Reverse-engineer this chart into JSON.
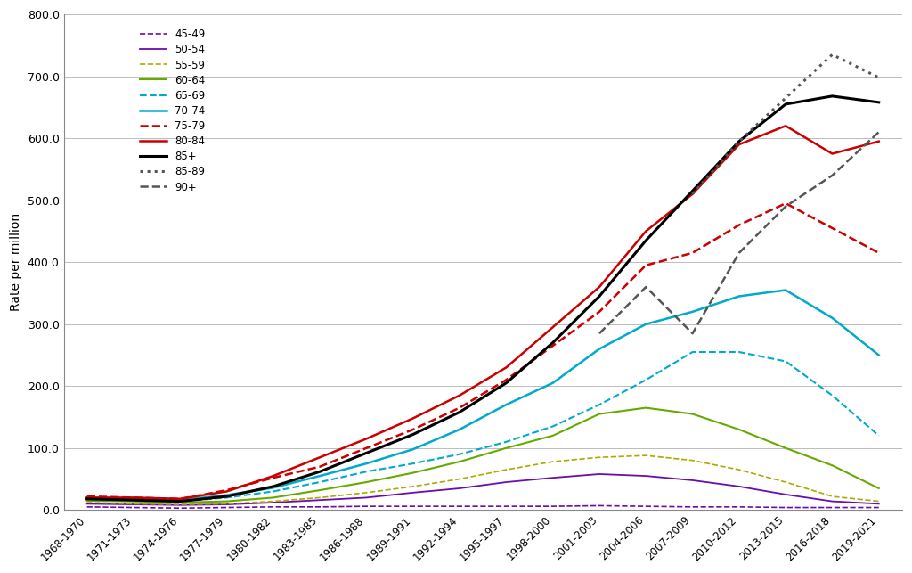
{
  "x_labels": [
    "1968-1970",
    "1971-1973",
    "1974-1976",
    "1977-1979",
    "1980-1982",
    "1983-1985",
    "1986-1988",
    "1989-1991",
    "1992-1994",
    "1995-1997",
    "1998-2000",
    "2001-2003",
    "2004-2006",
    "2007-2009",
    "2010-2012",
    "2013-2015",
    "2016-2018",
    "2019-2021"
  ],
  "series": {
    "45-49": {
      "color": "#6A0DAD",
      "linestyle": "dashed",
      "linewidth": 1.2,
      "values": [
        5,
        4,
        3,
        4,
        5,
        5,
        6,
        6,
        6,
        6,
        6,
        7,
        6,
        5,
        5,
        4,
        4,
        4
      ]
    },
    "50-54": {
      "color": "#6A0DAD",
      "linestyle": "solid",
      "linewidth": 1.3,
      "values": [
        10,
        9,
        8,
        9,
        12,
        16,
        20,
        28,
        35,
        45,
        52,
        58,
        55,
        48,
        38,
        25,
        14,
        10
      ]
    },
    "55-59": {
      "color": "#AAAA00",
      "linestyle": "dashed",
      "linewidth": 1.2,
      "values": [
        12,
        10,
        9,
        10,
        14,
        20,
        28,
        38,
        50,
        65,
        78,
        85,
        88,
        80,
        65,
        45,
        22,
        14
      ]
    },
    "60-64": {
      "color": "#66AA00",
      "linestyle": "solid",
      "linewidth": 1.5,
      "values": [
        15,
        14,
        12,
        14,
        20,
        32,
        45,
        60,
        78,
        100,
        120,
        155,
        165,
        155,
        130,
        100,
        72,
        35
      ]
    },
    "65-69": {
      "color": "#00AACC",
      "linestyle": "dashed",
      "linewidth": 1.5,
      "values": [
        18,
        16,
        14,
        20,
        30,
        45,
        62,
        75,
        90,
        110,
        135,
        170,
        210,
        255,
        255,
        240,
        185,
        120
      ]
    },
    "70-74": {
      "color": "#00AACC",
      "linestyle": "solid",
      "linewidth": 1.8,
      "values": [
        20,
        18,
        16,
        24,
        36,
        55,
        75,
        98,
        130,
        170,
        205,
        260,
        300,
        320,
        345,
        355,
        310,
        250
      ]
    },
    "75-79": {
      "color": "#CC0000",
      "linestyle": "dashed",
      "linewidth": 1.8,
      "values": [
        22,
        20,
        18,
        32,
        52,
        70,
        100,
        130,
        165,
        210,
        265,
        320,
        395,
        415,
        460,
        495,
        455,
        415
      ]
    },
    "80-84": {
      "color": "#CC0000",
      "linestyle": "solid",
      "linewidth": 1.8,
      "values": [
        20,
        20,
        18,
        30,
        55,
        85,
        115,
        148,
        185,
        230,
        295,
        360,
        450,
        510,
        590,
        620,
        575,
        595
      ]
    },
    "85+": {
      "color": "#000000",
      "linestyle": "solid",
      "linewidth": 2.2,
      "values": [
        18,
        16,
        14,
        22,
        38,
        62,
        92,
        122,
        158,
        205,
        270,
        345,
        435,
        515,
        595,
        655,
        668,
        658
      ]
    },
    "85-89": {
      "color": "#555555",
      "linestyle": "dotted",
      "linewidth": 2.2,
      "values": [
        null,
        null,
        null,
        null,
        null,
        null,
        null,
        null,
        null,
        null,
        null,
        null,
        null,
        510,
        595,
        665,
        735,
        698
      ]
    },
    "90+": {
      "color": "#555555",
      "linestyle": "dashed",
      "linewidth": 1.8,
      "values": [
        null,
        null,
        null,
        null,
        null,
        null,
        null,
        null,
        null,
        null,
        null,
        285,
        360,
        285,
        415,
        490,
        540,
        610
      ]
    }
  },
  "ylabel": "Rate per million",
  "ylim": [
    0,
    800
  ],
  "yticks": [
    0,
    100,
    200,
    300,
    400,
    500,
    600,
    700,
    800
  ],
  "ytick_labels": [
    "0.0",
    "100.0",
    "200.0",
    "300.0",
    "400.0",
    "500.0",
    "600.0",
    "700.0",
    "800.0"
  ],
  "legend_order": [
    "45-49",
    "50-54",
    "55-59",
    "60-64",
    "65-69",
    "70-74",
    "75-79",
    "80-84",
    "85+",
    "85-89",
    "90+"
  ],
  "background_color": "#FFFFFF",
  "grid_color": "#BBBBBB"
}
